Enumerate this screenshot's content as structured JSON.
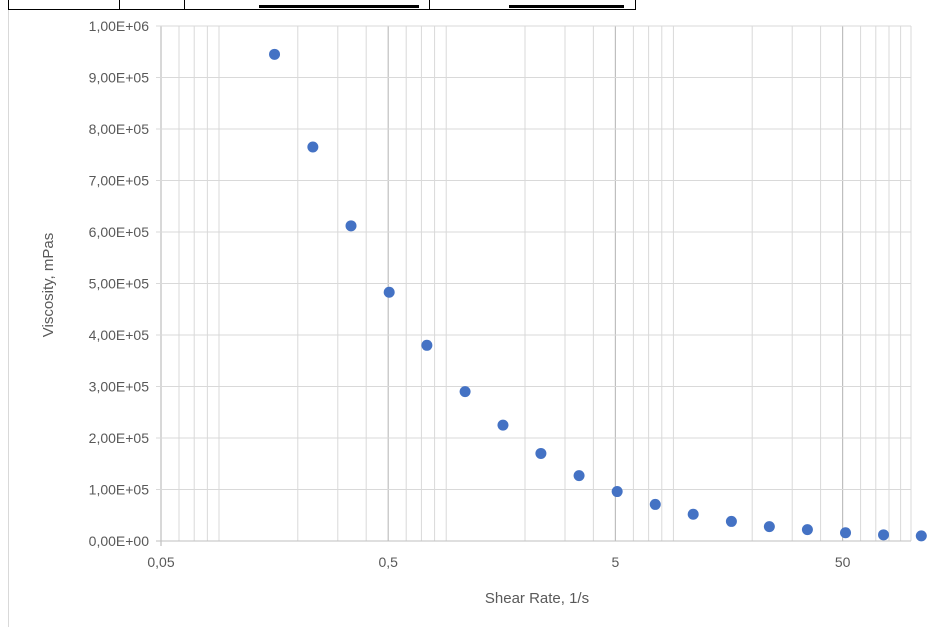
{
  "chart_data": {
    "type": "scatter",
    "xlabel": "Shear Rate, 1/s",
    "ylabel": "Viscosity, mPas",
    "x_scale": "log",
    "xlim": [
      0.05,
      100
    ],
    "ylim": [
      0,
      1000000
    ],
    "x_ticks": [
      {
        "value": 0.05,
        "label": "0,05"
      },
      {
        "value": 0.5,
        "label": "0,5"
      },
      {
        "value": 5,
        "label": "5"
      },
      {
        "value": 50,
        "label": "50"
      }
    ],
    "y_ticks": [
      {
        "value": 0,
        "label": "0,00E+00"
      },
      {
        "value": 100000,
        "label": "1,00E+05"
      },
      {
        "value": 200000,
        "label": "2,00E+05"
      },
      {
        "value": 300000,
        "label": "3,00E+05"
      },
      {
        "value": 400000,
        "label": "4,00E+05"
      },
      {
        "value": 500000,
        "label": "5,00E+05"
      },
      {
        "value": 600000,
        "label": "6,00E+05"
      },
      {
        "value": 700000,
        "label": "7,00E+05"
      },
      {
        "value": 800000,
        "label": "8,00E+05"
      },
      {
        "value": 900000,
        "label": "9,00E+05"
      },
      {
        "value": 1000000,
        "label": "1,00E+06"
      }
    ],
    "grid": true,
    "marker_color": "#4472c4",
    "gridline_color": "#d9d9d9",
    "series": [
      {
        "x": [
          0.158,
          0.233,
          0.343,
          0.505,
          0.74,
          1.09,
          1.6,
          2.35,
          3.46,
          5.09,
          7.49,
          11.0,
          16.2,
          23.8,
          35.0,
          51.5,
          75.7,
          111
        ],
        "y": [
          945000,
          765000,
          612000,
          483000,
          380000,
          290000,
          225000,
          170000,
          127000,
          96000,
          71000,
          52000,
          38000,
          28000,
          22000,
          16000,
          12000,
          10000
        ]
      }
    ]
  }
}
